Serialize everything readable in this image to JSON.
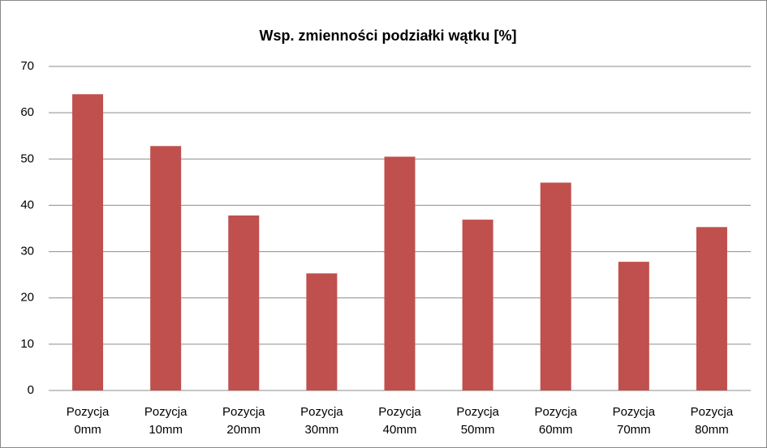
{
  "chart_data": {
    "type": "bar",
    "title": "Wsp. zmienności podziałki wątku [%]",
    "categories": [
      "Pozycja 0mm",
      "Pozycja 10mm",
      "Pozycja 20mm",
      "Pozycja 30mm",
      "Pozycja 40mm",
      "Pozycja 50mm",
      "Pozycja 60mm",
      "Pozycja 70mm",
      "Pozycja 80mm"
    ],
    "values": [
      64,
      52.8,
      37.8,
      25.3,
      50.5,
      36.9,
      44.9,
      27.8,
      35.3
    ],
    "color": "#c0504d",
    "ylim": [
      0,
      70
    ],
    "yticks": [
      0,
      10,
      20,
      30,
      40,
      50,
      60,
      70
    ],
    "grid": true
  }
}
